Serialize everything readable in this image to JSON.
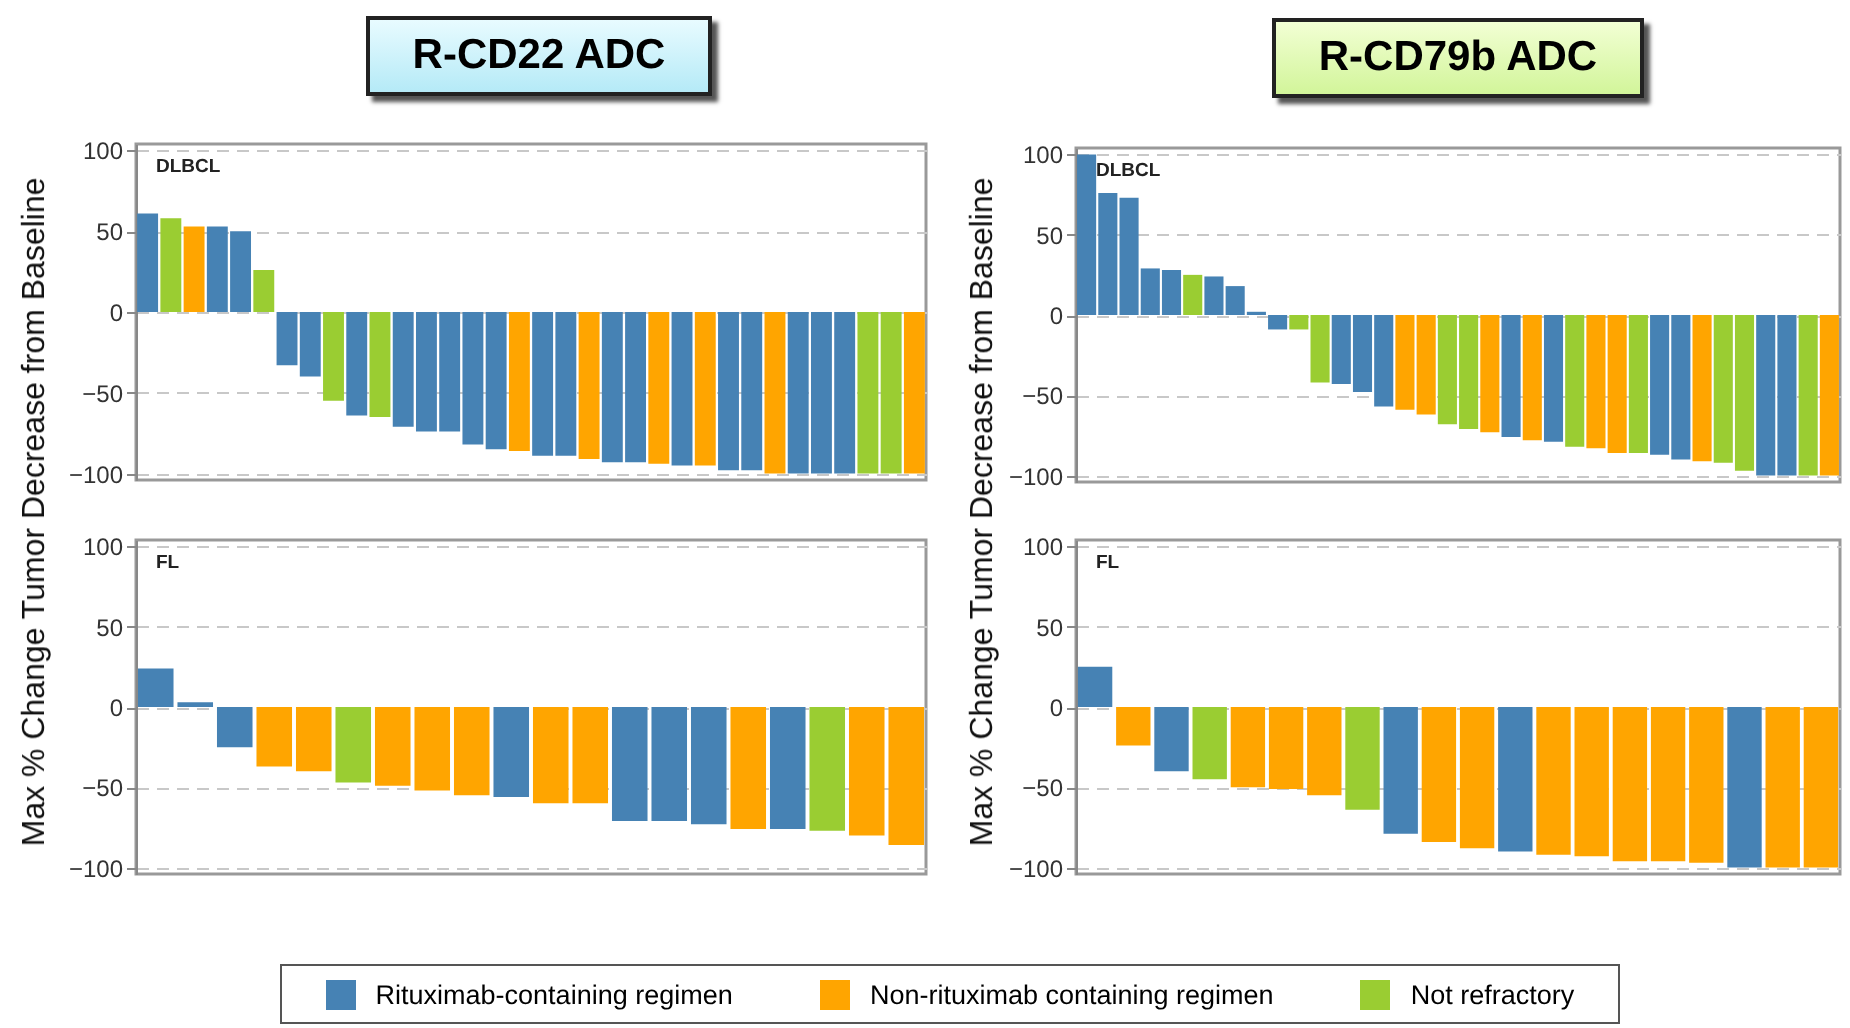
{
  "chart_data": [
    {
      "type": "bar",
      "title": "R-CD22 ADC",
      "subtitle": "DLBCL",
      "ylabel": "Max % Change Tumor Decrease from Baseline",
      "ylim": [
        -104,
        104
      ],
      "yticks": [
        -100,
        -50,
        0,
        50,
        100
      ],
      "grid": "y",
      "categories": [
        null,
        null,
        null,
        null,
        null,
        null,
        null,
        null,
        null,
        null,
        null,
        null,
        null,
        null,
        null,
        null,
        null,
        null,
        null,
        null,
        null,
        null,
        null,
        null,
        null,
        null,
        null,
        null,
        null,
        null,
        null,
        null,
        null,
        null
      ],
      "series": [
        {
          "color": "#4682b4",
          "values": [
            61,
            null,
            null,
            53,
            50,
            null,
            -33,
            -40,
            null,
            -64,
            null,
            -71,
            -74,
            -74,
            -82,
            -85,
            null,
            -89,
            -89,
            null,
            -93,
            -93,
            null,
            -95,
            null,
            -98,
            -98,
            null,
            -100,
            -100,
            -100,
            null,
            null,
            null
          ]
        },
        {
          "color": "#ffa500",
          "values": [
            null,
            null,
            53,
            null,
            null,
            null,
            null,
            null,
            null,
            null,
            null,
            null,
            null,
            null,
            null,
            null,
            -86,
            null,
            null,
            -91,
            null,
            null,
            -94,
            null,
            -95,
            null,
            null,
            -100,
            null,
            null,
            null,
            null,
            null,
            -100
          ]
        },
        {
          "color": "#9acd32",
          "values": [
            null,
            58,
            null,
            null,
            null,
            26,
            null,
            null,
            -55,
            null,
            -65,
            null,
            null,
            null,
            null,
            null,
            null,
            null,
            null,
            null,
            null,
            null,
            null,
            null,
            null,
            null,
            null,
            null,
            null,
            null,
            null,
            -100,
            -100,
            null
          ]
        }
      ]
    },
    {
      "type": "bar",
      "title": "R-CD79b ADC",
      "subtitle": "DLBCL",
      "ylabel": "Max % Change Tumor Decrease from Baseline",
      "ylim": [
        -104,
        104
      ],
      "yticks": [
        -100,
        -50,
        0,
        50,
        100
      ],
      "grid": "y",
      "categories": [
        null,
        null,
        null,
        null,
        null,
        null,
        null,
        null,
        null,
        null,
        null,
        null,
        null,
        null,
        null,
        null,
        null,
        null,
        null,
        null,
        null,
        null,
        null,
        null,
        null,
        null,
        null,
        null,
        null,
        null,
        null,
        null,
        null,
        null,
        null,
        null
      ],
      "series": [
        {
          "color": "#4682b4",
          "values": [
            100,
            76,
            73,
            29,
            28,
            null,
            24,
            18,
            2,
            -9,
            null,
            null,
            -43,
            -48,
            -57,
            null,
            null,
            null,
            null,
            null,
            -76,
            null,
            -79,
            null,
            null,
            null,
            null,
            -87,
            -90,
            null,
            null,
            null,
            -100,
            -100,
            null,
            null
          ]
        },
        {
          "color": "#ffa500",
          "values": [
            null,
            null,
            null,
            null,
            null,
            null,
            null,
            null,
            null,
            null,
            null,
            null,
            null,
            null,
            null,
            -59,
            -62,
            null,
            null,
            -73,
            null,
            -78,
            null,
            null,
            -83,
            -86,
            null,
            null,
            null,
            -91,
            null,
            null,
            null,
            null,
            null,
            -100
          ]
        },
        {
          "color": "#9acd32",
          "values": [
            null,
            null,
            null,
            null,
            null,
            25,
            null,
            null,
            null,
            null,
            -9,
            -42,
            null,
            null,
            null,
            null,
            null,
            -68,
            -71,
            null,
            null,
            null,
            null,
            -82,
            null,
            null,
            -86,
            null,
            null,
            null,
            -92,
            -97,
            null,
            null,
            -100,
            null
          ]
        }
      ]
    },
    {
      "type": "bar",
      "subtitle": "FL",
      "ylim": [
        -104,
        104
      ],
      "yticks": [
        -100,
        -50,
        0,
        50,
        100
      ],
      "grid": "y",
      "categories": [
        null,
        null,
        null,
        null,
        null,
        null,
        null,
        null,
        null,
        null,
        null,
        null,
        null,
        null,
        null,
        null,
        null,
        null,
        null,
        null
      ],
      "series": [
        {
          "color": "#4682b4",
          "values": [
            24,
            3,
            -25,
            null,
            null,
            null,
            null,
            null,
            null,
            -56,
            null,
            null,
            -71,
            -71,
            -73,
            null,
            -76,
            null,
            null,
            null
          ]
        },
        {
          "color": "#ffa500",
          "values": [
            null,
            null,
            null,
            -37,
            -40,
            null,
            -49,
            -52,
            -55,
            null,
            -60,
            -60,
            null,
            null,
            null,
            -76,
            null,
            null,
            -80,
            -86
          ]
        },
        {
          "color": "#9acd32",
          "values": [
            null,
            null,
            null,
            null,
            null,
            -47,
            null,
            null,
            null,
            null,
            null,
            null,
            null,
            null,
            null,
            null,
            null,
            -77,
            null,
            null
          ]
        }
      ]
    },
    {
      "type": "bar",
      "subtitle": "FL",
      "ylim": [
        -104,
        104
      ],
      "yticks": [
        -100,
        -50,
        0,
        50,
        100
      ],
      "grid": "y",
      "legend": "bottom",
      "categories": [
        null,
        null,
        null,
        null,
        null,
        null,
        null,
        null,
        null,
        null,
        null,
        null,
        null,
        null,
        null,
        null,
        null,
        null,
        null,
        null
      ],
      "series": [
        {
          "name": "Rituximab-containing regimen",
          "color": "#4682b4",
          "values": [
            25,
            null,
            -40,
            null,
            null,
            null,
            null,
            null,
            -79,
            null,
            null,
            -90,
            null,
            null,
            null,
            null,
            null,
            -100,
            null,
            null
          ]
        },
        {
          "name": "Non-rituximab containing regimen",
          "color": "#ffa500",
          "values": [
            null,
            -24,
            null,
            null,
            -50,
            -51,
            -55,
            null,
            null,
            -84,
            -88,
            null,
            -92,
            -93,
            -96,
            -96,
            -97,
            null,
            -100,
            -100
          ]
        },
        {
          "name": "Not refractory",
          "color": "#9acd32",
          "values": [
            null,
            null,
            null,
            -45,
            null,
            null,
            null,
            -64,
            null,
            null,
            null,
            null,
            null,
            null,
            null,
            null,
            null,
            null,
            null,
            null
          ]
        }
      ]
    }
  ]
}
